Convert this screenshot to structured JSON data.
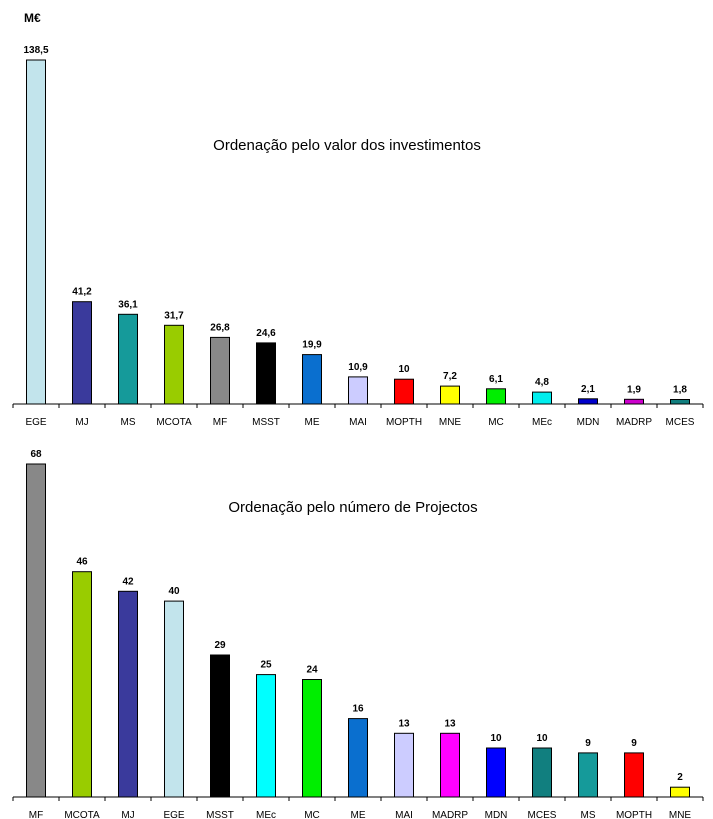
{
  "chart_data": [
    {
      "type": "bar",
      "unit_label": "M€",
      "title": "Ordenação pelo valor dos investimentos",
      "categories": [
        "EGE",
        "MJ",
        "MS",
        "MCOTA",
        "MF",
        "MSST",
        "ME",
        "MAI",
        "MOPTH",
        "MNE",
        "MC",
        "MEc",
        "MDN",
        "MADRP",
        "MCES"
      ],
      "values": [
        138.5,
        41.2,
        36.1,
        31.7,
        26.8,
        24.6,
        19.9,
        10.9,
        10,
        7.2,
        6.1,
        4.8,
        2.1,
        1.9,
        1.8
      ],
      "value_labels": [
        "138,5",
        "41,2",
        "36,1",
        "31,7",
        "26,8",
        "24,6",
        "19,9",
        "10,9",
        "10",
        "7,2",
        "6,1",
        "4,8",
        "2,1",
        "1,9",
        "1,8"
      ],
      "colors": [
        "#c2e4ec",
        "#3a3a9c",
        "#159a9a",
        "#99cc00",
        "#888888",
        "#000000",
        "#0a6fcf",
        "#ccccff",
        "#ff0000",
        "#ffff00",
        "#00ee00",
        "#00eeee",
        "#0000cc",
        "#cc00cc",
        "#117f7f"
      ],
      "ylim": [
        0,
        138.5
      ],
      "grid": false
    },
    {
      "type": "bar",
      "title": "Ordenação pelo número de Projectos",
      "categories": [
        "MF",
        "MCOTA",
        "MJ",
        "EGE",
        "MSST",
        "MEc",
        "MC",
        "ME",
        "MAI",
        "MADRP",
        "MDN",
        "MCES",
        "MS",
        "MOPTH",
        "MNE"
      ],
      "values": [
        68,
        46,
        42,
        40,
        29,
        25,
        24,
        16,
        13,
        13,
        10,
        10,
        9,
        9,
        2
      ],
      "value_labels": [
        "68",
        "46",
        "42",
        "40",
        "29",
        "25",
        "24",
        "16",
        "13",
        "13",
        "10",
        "10",
        "9",
        "9",
        "2"
      ],
      "colors": [
        "#888888",
        "#99cc00",
        "#3a3a9c",
        "#c2e4ec",
        "#000000",
        "#00ffff",
        "#00ee00",
        "#0a6fcf",
        "#ccccff",
        "#ff00ff",
        "#0000ff",
        "#117f7f",
        "#159a9a",
        "#ff0000",
        "#ffff00"
      ],
      "ylim": [
        0,
        68
      ],
      "grid": false
    }
  ]
}
